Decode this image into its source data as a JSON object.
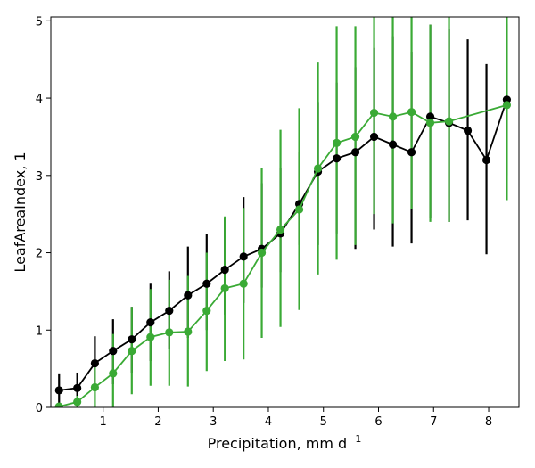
{
  "chart_data": {
    "type": "line",
    "title": "",
    "xlabel": "Precipitation,  mm d",
    "xlabel_sup": "−1",
    "ylabel": "LeafAreaIndex,  1",
    "xlim": [
      0.05,
      8.55
    ],
    "ylim": [
      0,
      5.05
    ],
    "xticks": [
      1,
      2,
      3,
      4,
      5,
      6,
      7,
      8
    ],
    "yticks": [
      0,
      1,
      2,
      3,
      4,
      5
    ],
    "grid": false,
    "legend": "none",
    "series": [
      {
        "color": "#000000",
        "x": [
          0.2,
          0.53,
          0.85,
          1.18,
          1.52,
          1.86,
          2.2,
          2.54,
          2.88,
          3.21,
          3.55,
          3.88,
          4.22,
          4.56,
          4.9,
          5.24,
          5.58,
          5.92,
          6.26,
          6.6,
          6.94,
          7.28,
          7.62,
          7.96,
          8.33
        ],
        "y": [
          0.22,
          0.25,
          0.57,
          0.73,
          0.88,
          1.1,
          1.25,
          1.45,
          1.6,
          1.78,
          1.95,
          2.05,
          2.25,
          2.63,
          3.05,
          3.22,
          3.3,
          3.5,
          3.4,
          3.3,
          3.76,
          3.68,
          3.58,
          3.2,
          3.98
        ],
        "err_low": [
          0.0,
          0.05,
          0.22,
          0.3,
          0.45,
          0.6,
          0.75,
          0.9,
          1.0,
          1.2,
          1.35,
          1.55,
          1.75,
          2.1,
          2.1,
          2.25,
          2.05,
          2.3,
          2.08,
          2.12,
          2.45,
          2.4,
          2.42,
          1.98,
          3.0
        ],
        "err_high": [
          0.44,
          0.45,
          0.92,
          1.14,
          1.3,
          1.6,
          1.76,
          2.08,
          2.24,
          2.45,
          2.72,
          2.9,
          3.1,
          3.3,
          3.95,
          4.2,
          4.4,
          4.65,
          4.8,
          4.6,
          4.95,
          4.9,
          4.76,
          4.44,
          4.96
        ]
      },
      {
        "color": "#3aaa35",
        "x": [
          0.2,
          0.53,
          0.85,
          1.18,
          1.52,
          1.86,
          2.2,
          2.54,
          2.88,
          3.21,
          3.55,
          3.88,
          4.22,
          4.56,
          4.9,
          5.24,
          5.58,
          5.92,
          6.26,
          6.6,
          6.94,
          7.28,
          8.33
        ],
        "y": [
          0.01,
          0.07,
          0.26,
          0.44,
          0.73,
          0.91,
          0.97,
          0.98,
          1.25,
          1.54,
          1.6,
          2.0,
          2.3,
          2.56,
          3.09,
          3.42,
          3.5,
          3.81,
          3.76,
          3.82,
          3.68,
          3.7,
          3.91
        ],
        "err_low": [
          0.0,
          0.0,
          0.0,
          0.0,
          0.17,
          0.28,
          0.28,
          0.27,
          0.47,
          0.6,
          0.62,
          0.9,
          1.04,
          1.26,
          1.72,
          1.91,
          2.1,
          2.5,
          2.38,
          2.56,
          2.4,
          2.4,
          2.68
        ],
        "err_high": [
          0.05,
          0.15,
          0.6,
          0.95,
          1.3,
          1.53,
          1.65,
          1.7,
          2.0,
          2.47,
          2.58,
          3.1,
          3.59,
          3.87,
          4.46,
          4.93,
          4.93,
          5.05,
          5.05,
          5.05,
          4.95,
          5.05,
          5.05
        ]
      }
    ]
  }
}
